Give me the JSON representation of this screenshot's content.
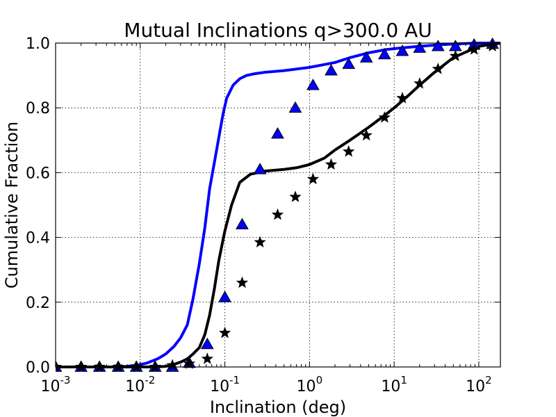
{
  "chart_data": {
    "type": "line",
    "title": "Mutual Inclinations q>300.0 AU",
    "xlabel": "Inclination (deg)",
    "ylabel": "Cumulative Fraction",
    "xscale": "log",
    "xlim": [
      0.001,
      180
    ],
    "ylim": [
      0.0,
      1.0
    ],
    "grid": true,
    "x_ticks": [
      {
        "base": "10",
        "exp": "-3",
        "value": 0.001
      },
      {
        "base": "10",
        "exp": "-2",
        "value": 0.01
      },
      {
        "base": "10",
        "exp": "-1",
        "value": 0.1
      },
      {
        "base": "10",
        "exp": "0",
        "value": 1
      },
      {
        "base": "10",
        "exp": "1",
        "value": 10
      },
      {
        "base": "10",
        "exp": "2",
        "value": 100
      }
    ],
    "y_ticks": [
      {
        "label": "0.0",
        "value": 0.0
      },
      {
        "label": "0.2",
        "value": 0.2
      },
      {
        "label": "0.4",
        "value": 0.4
      },
      {
        "label": "0.6",
        "value": 0.6
      },
      {
        "label": "0.8",
        "value": 0.8
      },
      {
        "label": "1.0",
        "value": 1.0
      }
    ],
    "series": [
      {
        "name": "blue-line",
        "kind": "line",
        "color": "#0000ff",
        "x": [
          0.001,
          0.003,
          0.006,
          0.009,
          0.012,
          0.016,
          0.02,
          0.025,
          0.03,
          0.036,
          0.042,
          0.05,
          0.058,
          0.066,
          0.075,
          0.085,
          0.095,
          0.105,
          0.125,
          0.15,
          0.18,
          0.22,
          0.3,
          0.5,
          1.0,
          2.0,
          3.0,
          5.0,
          8.0,
          12.0,
          20.0,
          35.0,
          60.0,
          100.0,
          180.0
        ],
        "y": [
          0.0,
          0.0,
          0.0,
          0.005,
          0.012,
          0.025,
          0.04,
          0.063,
          0.09,
          0.13,
          0.21,
          0.32,
          0.43,
          0.55,
          0.63,
          0.71,
          0.78,
          0.83,
          0.87,
          0.89,
          0.9,
          0.905,
          0.91,
          0.915,
          0.925,
          0.94,
          0.955,
          0.97,
          0.98,
          0.985,
          0.99,
          0.995,
          0.998,
          1.0,
          1.0
        ]
      },
      {
        "name": "black-line",
        "kind": "line",
        "color": "#000000",
        "x": [
          0.001,
          0.005,
          0.01,
          0.015,
          0.02,
          0.025,
          0.03,
          0.036,
          0.042,
          0.05,
          0.058,
          0.066,
          0.075,
          0.085,
          0.1,
          0.12,
          0.15,
          0.2,
          0.3,
          0.5,
          0.7,
          1.0,
          1.5,
          2.0,
          3.0,
          5.0,
          8.0,
          10.0,
          15.0,
          20.0,
          30.0,
          50.0,
          100.0,
          180.0
        ],
        "y": [
          0.0,
          0.0,
          0.0,
          0.0,
          0.002,
          0.008,
          0.015,
          0.025,
          0.04,
          0.06,
          0.1,
          0.16,
          0.24,
          0.33,
          0.42,
          0.5,
          0.57,
          0.595,
          0.605,
          0.61,
          0.615,
          0.625,
          0.645,
          0.67,
          0.7,
          0.74,
          0.78,
          0.8,
          0.84,
          0.87,
          0.91,
          0.955,
          0.99,
          1.0
        ]
      },
      {
        "name": "blue-triangles",
        "kind": "marker",
        "marker": "triangle",
        "color": "#0000ff",
        "x": [
          0.001,
          0.002,
          0.0033,
          0.0055,
          0.009,
          0.015,
          0.024,
          0.038,
          0.062,
          0.1,
          0.16,
          0.26,
          0.42,
          0.68,
          1.1,
          1.8,
          2.9,
          4.7,
          7.7,
          12.5,
          20.0,
          33.0,
          53.0,
          88.0,
          145.0
        ],
        "y": [
          0.0,
          0.0,
          0.0,
          0.0,
          0.0,
          0.0,
          0.0,
          0.012,
          0.07,
          0.215,
          0.44,
          0.61,
          0.72,
          0.8,
          0.87,
          0.915,
          0.935,
          0.955,
          0.965,
          0.975,
          0.985,
          0.99,
          0.99,
          0.995,
          0.997
        ]
      },
      {
        "name": "black-stars",
        "kind": "marker",
        "marker": "star",
        "color": "#000000",
        "x": [
          0.001,
          0.002,
          0.0033,
          0.0055,
          0.009,
          0.015,
          0.024,
          0.038,
          0.062,
          0.1,
          0.16,
          0.26,
          0.42,
          0.68,
          1.1,
          1.8,
          2.9,
          4.7,
          7.7,
          12.5,
          20.0,
          33.0,
          53.0,
          88.0,
          145.0
        ],
        "y": [
          0.0,
          0.0,
          0.0,
          0.0,
          0.0,
          0.0,
          0.005,
          0.01,
          0.025,
          0.105,
          0.26,
          0.385,
          0.47,
          0.525,
          0.58,
          0.625,
          0.665,
          0.715,
          0.77,
          0.83,
          0.875,
          0.92,
          0.96,
          0.98,
          0.99
        ]
      }
    ]
  }
}
